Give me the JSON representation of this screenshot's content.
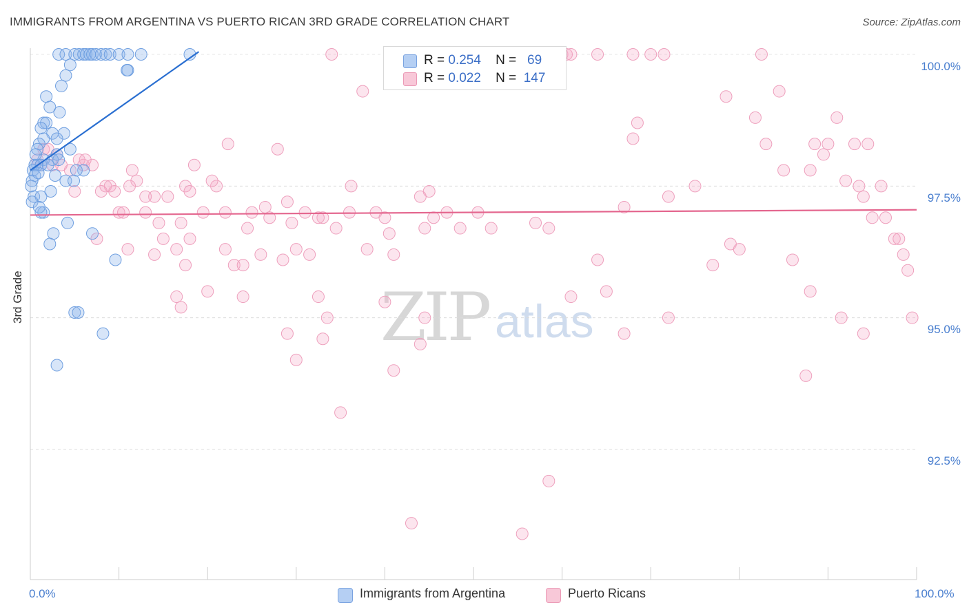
{
  "title": "IMMIGRANTS FROM ARGENTINA VS PUERTO RICAN 3RD GRADE CORRELATION CHART",
  "source": "Source: ZipAtlas.com",
  "watermark": {
    "zip": "ZIP",
    "atlas": "atlas"
  },
  "legend": {
    "r_label": "R =",
    "n_label": "N =",
    "series": [
      {
        "name": "Immigrants from Argentina",
        "r": "0.254",
        "n": "69",
        "color": "#5b8fd9",
        "fill": "#a9c7f0"
      },
      {
        "name": "Puerto Ricans",
        "r": "0.022",
        "n": "147",
        "color": "#e8709a",
        "fill": "#f6bfd1"
      }
    ]
  },
  "chart_data": {
    "type": "scatter",
    "title": "IMMIGRANTS FROM ARGENTINA VS PUERTO RICAN 3RD GRADE CORRELATION CHART",
    "xlabel": "",
    "ylabel": "3rd Grade",
    "xlim": [
      0,
      100
    ],
    "ylim": [
      90.0,
      100.4
    ],
    "x_tick_labels": [
      "0.0%",
      "100.0%"
    ],
    "y_ticks": [
      {
        "value": 100.0,
        "label": "100.0%"
      },
      {
        "value": 97.5,
        "label": "97.5%"
      },
      {
        "value": 95.0,
        "label": "95.0%"
      },
      {
        "value": 92.5,
        "label": "92.5%"
      }
    ],
    "grid": true,
    "series": [
      {
        "name": "Immigrants from Argentina",
        "trend": {
          "x": [
            0.0,
            19.0
          ],
          "y": [
            97.8,
            100.05
          ]
        },
        "points": [
          [
            3.2,
            100.0
          ],
          [
            4.0,
            100.0
          ],
          [
            5.0,
            100.0
          ],
          [
            5.5,
            100.0
          ],
          [
            6.0,
            100.0
          ],
          [
            6.3,
            100.0
          ],
          [
            6.7,
            100.0
          ],
          [
            7.0,
            100.0
          ],
          [
            7.4,
            100.0
          ],
          [
            8.0,
            100.0
          ],
          [
            8.5,
            100.0
          ],
          [
            9.0,
            100.0
          ],
          [
            10.0,
            100.0
          ],
          [
            11.0,
            100.0
          ],
          [
            12.5,
            100.0
          ],
          [
            18.0,
            100.0
          ],
          [
            4.5,
            99.8
          ],
          [
            11.0,
            99.7
          ],
          [
            10.9,
            99.7
          ],
          [
            4.0,
            99.6
          ],
          [
            3.5,
            99.4
          ],
          [
            1.8,
            99.2
          ],
          [
            2.2,
            99.0
          ],
          [
            3.3,
            98.9
          ],
          [
            1.5,
            98.7
          ],
          [
            1.8,
            98.7
          ],
          [
            1.2,
            98.6
          ],
          [
            2.5,
            98.5
          ],
          [
            3.8,
            98.5
          ],
          [
            3.0,
            98.4
          ],
          [
            1.5,
            98.4
          ],
          [
            1.0,
            98.3
          ],
          [
            0.8,
            98.2
          ],
          [
            3.0,
            98.1
          ],
          [
            4.5,
            98.2
          ],
          [
            1.5,
            98.0
          ],
          [
            2.5,
            98.0
          ],
          [
            0.5,
            97.9
          ],
          [
            0.8,
            97.9
          ],
          [
            1.2,
            97.9
          ],
          [
            3.2,
            98.0
          ],
          [
            0.3,
            97.8
          ],
          [
            0.5,
            97.7
          ],
          [
            2.8,
            97.7
          ],
          [
            4.0,
            97.6
          ],
          [
            4.9,
            97.6
          ],
          [
            6.0,
            97.8
          ],
          [
            0.2,
            97.6
          ],
          [
            0.1,
            97.5
          ],
          [
            2.3,
            97.4
          ],
          [
            0.4,
            97.3
          ],
          [
            1.2,
            97.3
          ],
          [
            1.5,
            97.0
          ],
          [
            1.2,
            97.0
          ],
          [
            4.2,
            96.8
          ],
          [
            2.6,
            96.6
          ],
          [
            7.0,
            96.6
          ],
          [
            2.2,
            96.4
          ],
          [
            9.6,
            96.1
          ],
          [
            5.0,
            95.1
          ],
          [
            5.4,
            95.1
          ],
          [
            8.2,
            94.7
          ],
          [
            3.0,
            94.1
          ],
          [
            0.2,
            97.2
          ],
          [
            0.6,
            98.1
          ],
          [
            2.0,
            97.9
          ],
          [
            5.2,
            97.8
          ],
          [
            1.0,
            97.1
          ],
          [
            0.9,
            97.75
          ]
        ]
      },
      {
        "name": "Puerto Ricans",
        "trend": {
          "x": [
            0.0,
            100.0
          ],
          "y": [
            96.95,
            97.05
          ]
        },
        "points": [
          [
            34.0,
            100.0
          ],
          [
            60.0,
            100.0
          ],
          [
            60.5,
            100.0
          ],
          [
            61.0,
            100.0
          ],
          [
            64.0,
            100.0
          ],
          [
            68.0,
            100.0
          ],
          [
            70.0,
            100.0
          ],
          [
            71.5,
            100.0
          ],
          [
            82.5,
            100.0
          ],
          [
            37.5,
            99.3
          ],
          [
            78.5,
            99.2
          ],
          [
            84.5,
            99.3
          ],
          [
            91.0,
            98.8
          ],
          [
            81.8,
            98.8
          ],
          [
            68.5,
            98.7
          ],
          [
            68.0,
            98.4
          ],
          [
            22.3,
            98.3
          ],
          [
            27.9,
            98.2
          ],
          [
            83.0,
            98.3
          ],
          [
            88.5,
            98.3
          ],
          [
            90.0,
            98.3
          ],
          [
            93.0,
            98.3
          ],
          [
            94.5,
            98.3
          ],
          [
            89.5,
            98.1
          ],
          [
            1.5,
            98.2
          ],
          [
            2.0,
            98.2
          ],
          [
            0.8,
            98.0
          ],
          [
            1.2,
            97.9
          ],
          [
            3.5,
            97.9
          ],
          [
            4.5,
            97.8
          ],
          [
            6.0,
            97.9
          ],
          [
            7.0,
            97.9
          ],
          [
            5.5,
            98.0
          ],
          [
            6.2,
            98.0
          ],
          [
            11.5,
            97.8
          ],
          [
            18.5,
            97.9
          ],
          [
            21.0,
            97.5
          ],
          [
            17.5,
            97.5
          ],
          [
            8.5,
            97.5
          ],
          [
            9.0,
            97.5
          ],
          [
            12.0,
            97.6
          ],
          [
            9.5,
            97.4
          ],
          [
            11.2,
            97.5
          ],
          [
            14.0,
            97.3
          ],
          [
            15.5,
            97.3
          ],
          [
            18.0,
            97.4
          ],
          [
            20.5,
            97.6
          ],
          [
            29.0,
            97.2
          ],
          [
            36.2,
            97.5
          ],
          [
            45.0,
            97.4
          ],
          [
            75.0,
            97.5
          ],
          [
            93.5,
            97.5
          ],
          [
            96.0,
            97.5
          ],
          [
            85.0,
            97.8
          ],
          [
            88.0,
            97.8
          ],
          [
            92.0,
            97.6
          ],
          [
            94.0,
            97.3
          ],
          [
            72.0,
            97.3
          ],
          [
            44.0,
            97.3
          ],
          [
            10.0,
            97.0
          ],
          [
            10.5,
            97.0
          ],
          [
            13.0,
            97.0
          ],
          [
            19.5,
            97.0
          ],
          [
            22.0,
            97.0
          ],
          [
            25.0,
            97.0
          ],
          [
            26.5,
            97.1
          ],
          [
            27.0,
            96.9
          ],
          [
            31.0,
            97.0
          ],
          [
            33.0,
            96.9
          ],
          [
            36.0,
            97.0
          ],
          [
            39.0,
            97.0
          ],
          [
            40.0,
            96.9
          ],
          [
            45.5,
            96.9
          ],
          [
            47.0,
            97.0
          ],
          [
            50.5,
            97.0
          ],
          [
            14.5,
            96.8
          ],
          [
            17.0,
            96.8
          ],
          [
            24.5,
            96.7
          ],
          [
            29.5,
            96.8
          ],
          [
            32.5,
            96.9
          ],
          [
            34.5,
            96.7
          ],
          [
            40.5,
            96.6
          ],
          [
            44.5,
            96.7
          ],
          [
            48.5,
            96.7
          ],
          [
            52.0,
            96.7
          ],
          [
            58.5,
            96.7
          ],
          [
            7.5,
            96.5
          ],
          [
            15.0,
            96.5
          ],
          [
            18.0,
            96.5
          ],
          [
            14.0,
            96.2
          ],
          [
            11.0,
            96.3
          ],
          [
            16.5,
            96.3
          ],
          [
            22.0,
            96.3
          ],
          [
            26.0,
            96.2
          ],
          [
            30.0,
            96.3
          ],
          [
            31.5,
            96.2
          ],
          [
            38.0,
            96.3
          ],
          [
            41.0,
            96.2
          ],
          [
            17.5,
            96.0
          ],
          [
            23.0,
            96.0
          ],
          [
            24.0,
            96.0
          ],
          [
            28.5,
            96.1
          ],
          [
            64.0,
            96.1
          ],
          [
            79.0,
            96.4
          ],
          [
            80.0,
            96.3
          ],
          [
            86.0,
            96.1
          ],
          [
            95.0,
            96.9
          ],
          [
            96.5,
            96.9
          ],
          [
            97.5,
            96.5
          ],
          [
            98.0,
            96.5
          ],
          [
            98.5,
            96.2
          ],
          [
            99.0,
            95.9
          ],
          [
            99.5,
            95.0
          ],
          [
            16.5,
            95.4
          ],
          [
            17.0,
            95.2
          ],
          [
            20.0,
            95.5
          ],
          [
            24.0,
            95.4
          ],
          [
            32.5,
            95.4
          ],
          [
            40.0,
            95.3
          ],
          [
            61.0,
            95.4
          ],
          [
            65.0,
            95.5
          ],
          [
            88.0,
            95.5
          ],
          [
            33.5,
            95.0
          ],
          [
            44.5,
            95.0
          ],
          [
            72.0,
            95.0
          ],
          [
            91.5,
            95.0
          ],
          [
            29.0,
            94.7
          ],
          [
            33.0,
            94.6
          ],
          [
            44.0,
            94.5
          ],
          [
            67.0,
            94.7
          ],
          [
            94.0,
            94.7
          ],
          [
            30.0,
            94.2
          ],
          [
            41.0,
            94.0
          ],
          [
            87.5,
            93.9
          ],
          [
            35.0,
            93.2
          ],
          [
            58.5,
            91.9
          ],
          [
            43.0,
            91.1
          ],
          [
            55.5,
            90.9
          ],
          [
            2.5,
            97.9
          ],
          [
            3.0,
            98.1
          ],
          [
            8.0,
            97.4
          ],
          [
            13.0,
            97.3
          ],
          [
            5.0,
            97.4
          ],
          [
            67.0,
            97.1
          ],
          [
            57.0,
            96.8
          ],
          [
            77.0,
            96.0
          ]
        ]
      }
    ]
  }
}
